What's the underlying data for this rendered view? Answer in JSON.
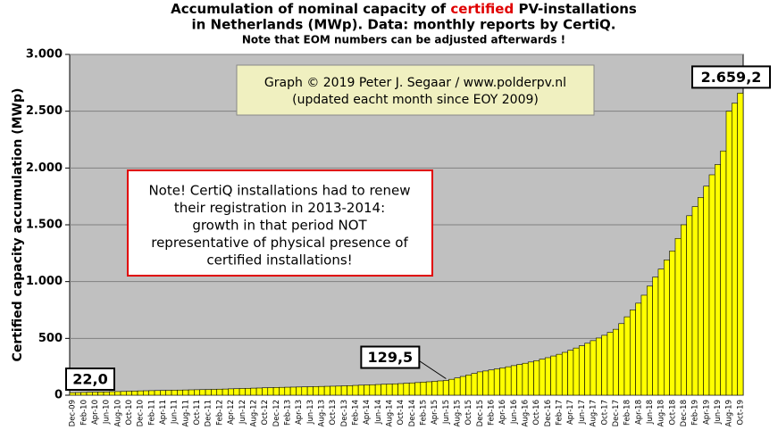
{
  "chart_data": {
    "type": "bar",
    "title": {
      "pre": "Accumulation  of nominal capacity of",
      "highlight": "certified",
      "post": "PV-installations",
      "line2": "in Netherlands (MWp). Data: monthly  reports by CertiQ."
    },
    "subtitle": "Note that EOM numbers can be adjusted afterwards  !",
    "ylabel": "Certified capacity accumulation (MWp)",
    "annotations": {
      "credit": [
        "Graph © 2019 Peter J. Segaar / www.polderpv.nl",
        "(updated eacht month since EOY 2009)"
      ],
      "note": [
        "Note! CertiQ installations had to renew",
        "their registration in 2013-2014:",
        "growth in that period NOT",
        "representative of physical presence of",
        "certified installations!"
      ]
    },
    "categories": [
      "Dec-09",
      null,
      "Feb-10",
      null,
      "Apr-10",
      null,
      "Jun-10",
      null,
      "Aug-10",
      null,
      "Oct-10",
      null,
      "Dec-10",
      null,
      "Feb-11",
      null,
      "Apr-11",
      null,
      "Jun-11",
      null,
      "Aug-11",
      null,
      "Oct-11",
      null,
      "Dec-11",
      null,
      "Feb-12",
      null,
      "Apr-12",
      null,
      "Jun-12",
      null,
      "Aug-12",
      null,
      "Oct-12",
      null,
      "Dec-12",
      null,
      "Feb-13",
      null,
      "Apr-13",
      null,
      "Jun-13",
      null,
      "Aug-13",
      null,
      "Oct-13",
      null,
      "Dec-13",
      null,
      "Feb-14",
      null,
      "Apr-14",
      null,
      "Jun-14",
      null,
      "Aug-14",
      null,
      "Oct-14",
      null,
      "Dec-14",
      null,
      "Feb-15",
      null,
      "Apr-15",
      null,
      "Jun-15",
      null,
      "Aug-15",
      null,
      "Oct-15",
      null,
      "Dec-15",
      null,
      "Feb-16",
      null,
      "Apr-16",
      null,
      "Jun-16",
      null,
      "Aug-16",
      null,
      "Oct-16",
      null,
      "Dec-16",
      null,
      "Feb-17",
      null,
      "Apr-17",
      null,
      "Jun-17",
      null,
      "Aug-17",
      null,
      "Oct-17",
      null,
      "Dec-17",
      null,
      "Feb-18",
      null,
      "Apr-18",
      null,
      "Jun-18",
      null,
      "Aug-18",
      null,
      "Oct-18",
      null,
      "Dec-18",
      null,
      "Feb-19",
      null,
      "Apr-19",
      null,
      "Jun-19",
      null,
      "Aug-19",
      null,
      "Oct-19"
    ],
    "values": [
      22.0,
      23,
      24,
      26,
      27,
      28,
      29,
      31,
      32,
      33,
      35,
      36,
      38,
      39,
      40,
      41,
      42,
      43,
      44,
      45,
      46,
      47,
      48,
      49,
      50,
      51,
      53,
      54,
      56,
      57,
      59,
      60,
      62,
      63,
      65,
      66,
      68,
      69,
      70,
      71,
      72,
      73,
      74,
      76,
      77,
      78,
      79,
      80,
      82,
      84,
      86,
      88,
      90,
      92,
      94,
      96,
      98,
      100,
      102,
      105,
      108,
      111,
      115,
      118,
      122,
      126,
      129.5,
      140,
      152,
      165,
      178,
      191,
      205,
      213,
      222,
      231,
      240,
      250,
      260,
      270,
      281,
      292,
      304,
      317,
      330,
      345,
      360,
      377,
      395,
      415,
      435,
      457,
      480,
      503,
      527,
      553,
      580,
      630,
      690,
      750,
      810,
      880,
      960,
      1040,
      1110,
      1190,
      1270,
      1380,
      1500,
      1580,
      1660,
      1740,
      1840,
      1940,
      2030,
      2150,
      2500,
      2570,
      2659.2
    ],
    "value_labels": [
      "22,0",
      null,
      null,
      null,
      null,
      null,
      null,
      null,
      null,
      null,
      null,
      null,
      null,
      null,
      null,
      null,
      null,
      null,
      null,
      null,
      null,
      null,
      null,
      null,
      null,
      null,
      null,
      null,
      null,
      null,
      null,
      null,
      null,
      null,
      null,
      null,
      null,
      null,
      null,
      null,
      null,
      null,
      null,
      null,
      null,
      null,
      null,
      null,
      null,
      null,
      null,
      null,
      null,
      null,
      null,
      null,
      null,
      null,
      null,
      null,
      null,
      null,
      null,
      null,
      null,
      null,
      "129,5",
      null,
      null,
      null,
      null,
      null,
      null,
      null,
      null,
      null,
      null,
      null,
      null,
      null,
      null,
      null,
      null,
      null,
      null,
      null,
      null,
      null,
      null,
      null,
      null,
      null,
      null,
      null,
      null,
      null,
      null,
      null,
      null,
      null,
      null,
      null,
      null,
      null,
      null,
      null,
      null,
      null,
      null,
      null,
      null,
      null,
      null,
      null,
      null,
      null,
      null,
      null,
      "2.659,2"
    ],
    "color": "#ffff00",
    "background": "#c0c0c0",
    "ylim": [
      0,
      3000
    ],
    "yticks": [
      0,
      500,
      {
        "value": 1000,
        "label": "1.000"
      },
      {
        "value": 1500,
        "label": "1.500"
      },
      {
        "value": 2000,
        "label": "2.000"
      },
      {
        "value": 2500,
        "label": "2.500"
      },
      {
        "value": 3000,
        "label": "3.000"
      }
    ],
    "grid": true
  }
}
